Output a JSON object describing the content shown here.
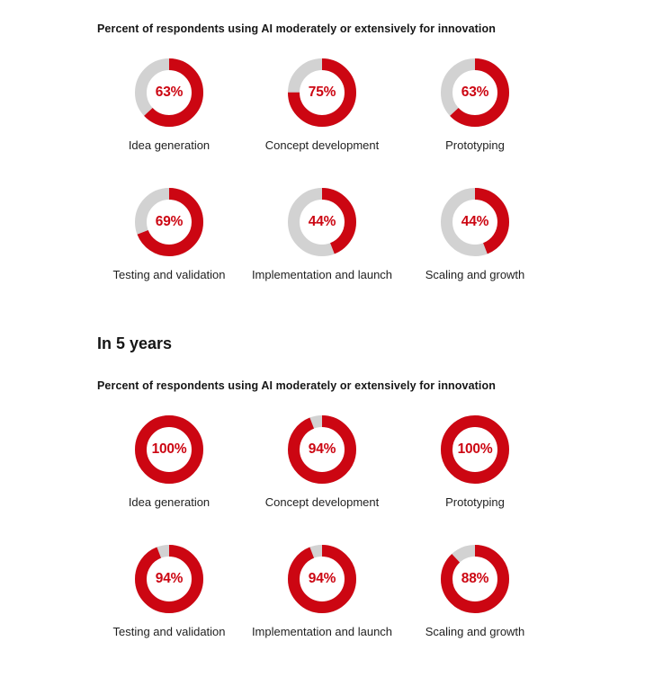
{
  "colors": {
    "accent_red": "#cc0612",
    "ring_gray": "#d2d2d2",
    "text_dark": "#161616",
    "label_gray": "#1f1f1f",
    "background": "#ffffff"
  },
  "chart_data": [
    {
      "type": "pie",
      "variant": "donut-grid",
      "title": "Percent of respondents using AI moderately or extensively for innovation",
      "unit": "%",
      "legend_position": "none",
      "categories": [
        "Idea generation",
        "Concept development",
        "Prototyping",
        "Testing and validation",
        "Implementation and launch",
        "Scaling and growth"
      ],
      "values": [
        63,
        75,
        63,
        69,
        44,
        44
      ]
    },
    {
      "type": "pie",
      "variant": "donut-grid",
      "section_heading": "In 5 years",
      "title": "Percent of respondents using AI moderately or extensively for innovation",
      "unit": "%",
      "legend_position": "none",
      "categories": [
        "Idea generation",
        "Concept development",
        "Prototyping",
        "Testing and validation",
        "Implementation and launch",
        "Scaling and growth"
      ],
      "values": [
        100,
        94,
        100,
        94,
        94,
        88
      ]
    }
  ]
}
